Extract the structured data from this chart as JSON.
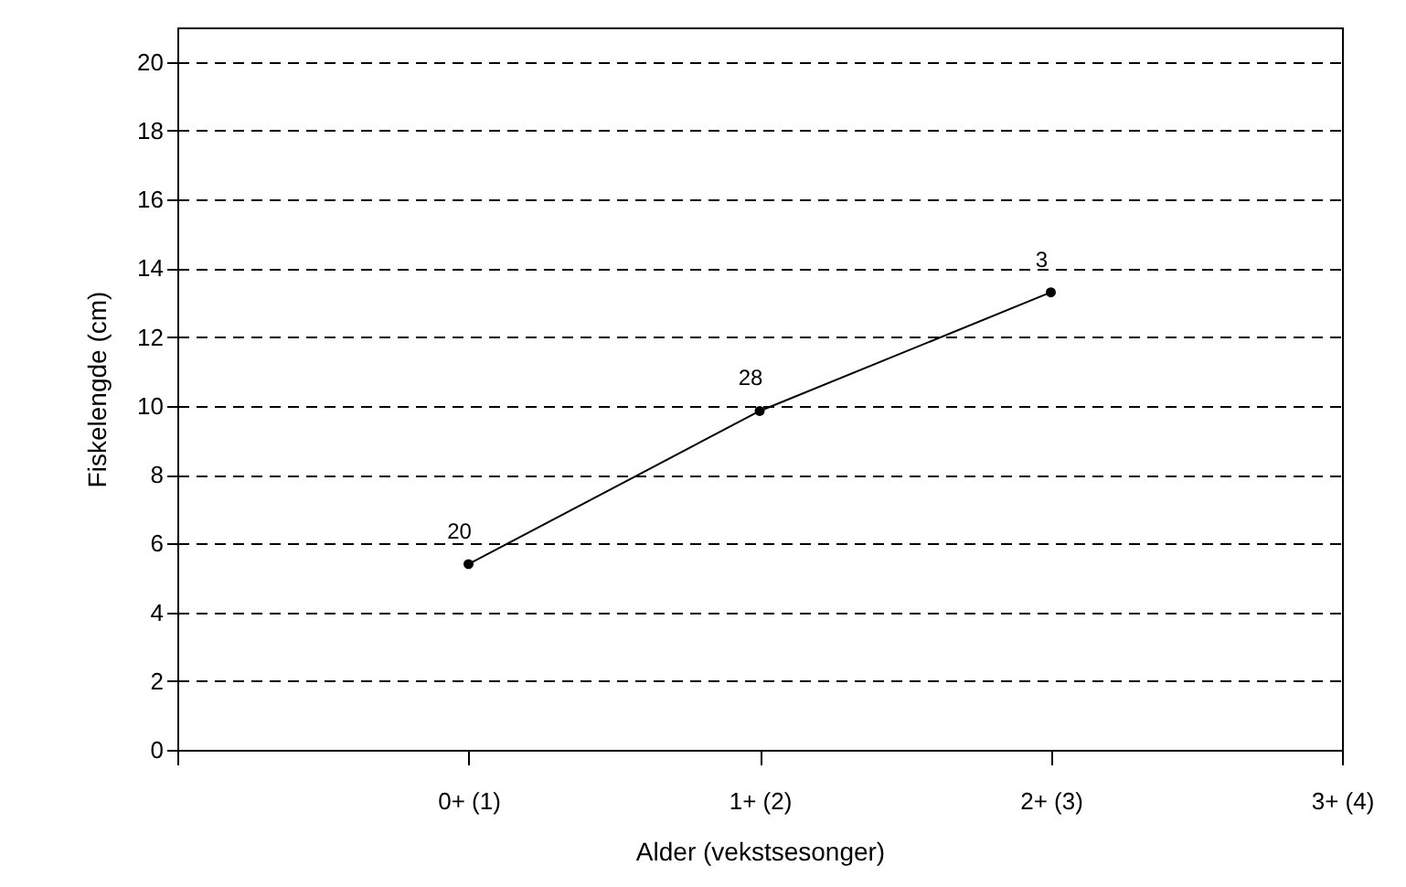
{
  "chart_data": {
    "type": "line",
    "xlabel": "Alder (vekstsesonger)",
    "ylabel": "Fiskelengde (cm)",
    "categories": [
      null,
      "0+ (1)",
      "1+ (2)",
      "2+ (3)",
      "3+ (4)"
    ],
    "series": [
      {
        "color": "#000000",
        "values": [
          null,
          5.4,
          9.85,
          13.3,
          null
        ]
      }
    ],
    "ylim": [
      0,
      21
    ],
    "yticks": [
      0,
      2,
      4,
      6,
      8,
      10,
      12,
      14,
      16,
      18,
      20
    ],
    "grid": "y",
    "marker": "circle",
    "line_style": "solid",
    "annotations": [
      {
        "text": "20",
        "x": "0+ (1)",
        "y": 5.4
      },
      {
        "text": "28",
        "x": "1+ (2)",
        "y": 9.85
      },
      {
        "text": "3",
        "x": "2+ (3)",
        "y": 13.3
      }
    ]
  }
}
